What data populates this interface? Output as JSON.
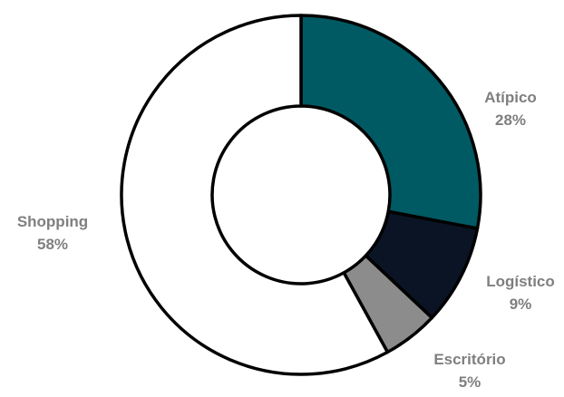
{
  "chart_data": {
    "type": "pie",
    "donut": true,
    "title": "",
    "legend": "none",
    "start_angle_deg": 0,
    "direction": "clockwise",
    "slices": [
      {
        "label": "Atípico",
        "value": 28,
        "value_label": "28%",
        "color": "#005a63"
      },
      {
        "label": "Logístico",
        "value": 9,
        "value_label": "9%",
        "color": "#0a1424"
      },
      {
        "label": "Escritório",
        "value": 5,
        "value_label": "5%",
        "color": "#8c8c8c"
      },
      {
        "label": "Shopping",
        "value": 58,
        "value_label": "58%",
        "color": "#ffffff"
      }
    ],
    "outline_color": "#000000",
    "label_color": "#7f7f7f"
  }
}
